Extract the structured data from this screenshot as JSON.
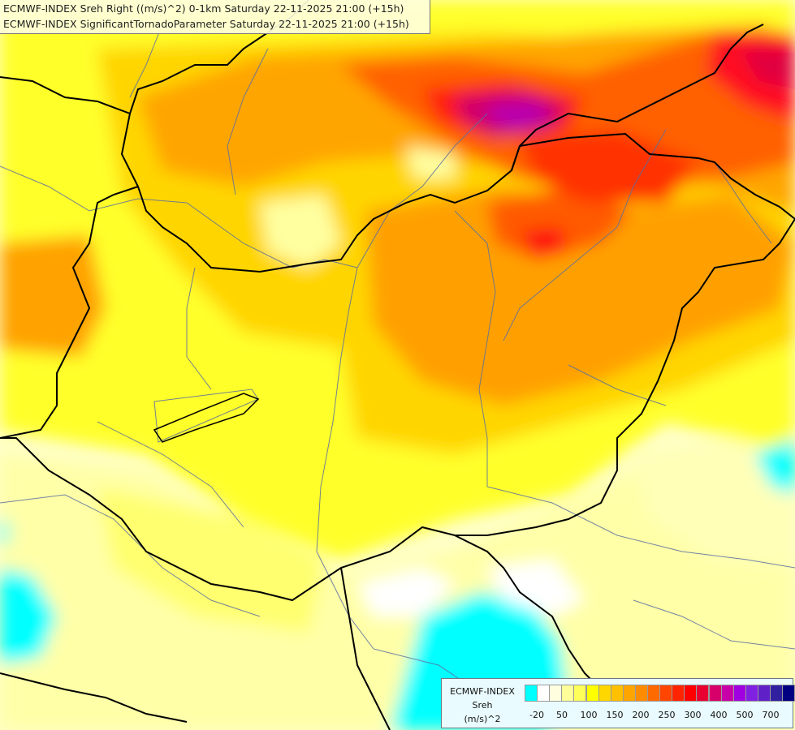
{
  "header": {
    "line1": "ECMWF-INDEX Sreh Right ((m/s)^2) 0-1km Saturday 22-11-2025 21:00 (+15h)",
    "line2": "ECMWF-INDEX SignificantTornadoParameter Saturday 22-11-2025 21:00 (+15h)"
  },
  "legend": {
    "title1": "ECMWF-INDEX",
    "title2": "Sreh",
    "unit": "(m/s)^2",
    "colors": [
      "#00ffff",
      "#ffffff",
      "#ffffe0",
      "#ffff9a",
      "#ffff5a",
      "#ffff00",
      "#ffd700",
      "#ffc000",
      "#ffa500",
      "#ff8c00",
      "#ff6a00",
      "#ff4500",
      "#ff2400",
      "#ff0000",
      "#e80030",
      "#d7006a",
      "#c800a8",
      "#a000e0",
      "#8020e0",
      "#6020c8",
      "#3020a0",
      "#000080"
    ],
    "ticks": [
      "-20",
      "50",
      "100",
      "150",
      "200",
      "250",
      "300",
      "400",
      "500",
      "700"
    ]
  }
}
